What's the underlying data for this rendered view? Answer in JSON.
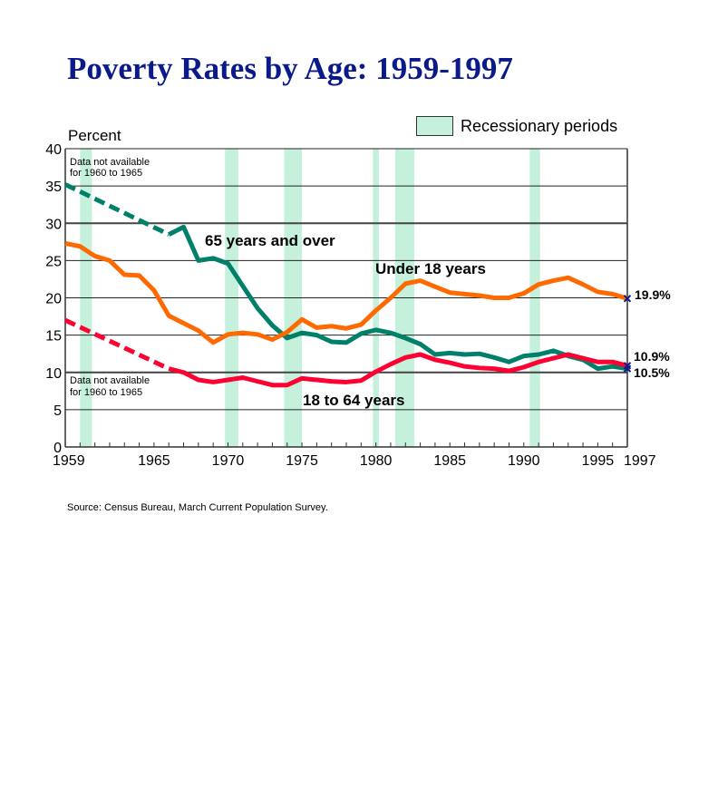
{
  "chart_data": {
    "type": "line",
    "title": "Poverty Rates by Age:  1959-1997",
    "ylabel": "Percent",
    "xlabel": "",
    "xlim": [
      1959,
      1997
    ],
    "ylim": [
      0,
      40
    ],
    "y_ticks": [
      0,
      5,
      10,
      15,
      20,
      25,
      30,
      35,
      40
    ],
    "x_ticks": [
      1959,
      1965,
      1970,
      1975,
      1980,
      1985,
      1990,
      1995,
      1997
    ],
    "grid": true,
    "legend": {
      "label": "Recessionary periods",
      "position": "top-right"
    },
    "recessions": [
      [
        1960.0,
        1960.8
      ],
      [
        1969.8,
        1970.7
      ],
      [
        1973.8,
        1975.0
      ],
      [
        1979.8,
        1980.2
      ],
      [
        1981.3,
        1982.6
      ],
      [
        1990.4,
        1991.1
      ]
    ],
    "recession_color": "#c4f0dc",
    "notes": [
      "Data not available for 1960 to 1965",
      "Data not available for 1960 to 1965"
    ],
    "series": [
      {
        "name": "65 years and over",
        "color": "#00806a",
        "dashed_until": 1966,
        "end_label": "10.5%",
        "x": [
          1959,
          1966,
          1967,
          1968,
          1969,
          1970,
          1971,
          1972,
          1973,
          1974,
          1975,
          1976,
          1977,
          1978,
          1979,
          1980,
          1981,
          1982,
          1983,
          1984,
          1985,
          1986,
          1987,
          1988,
          1989,
          1990,
          1991,
          1992,
          1993,
          1994,
          1995,
          1996,
          1997
        ],
        "y": [
          35.2,
          28.5,
          29.5,
          25.0,
          25.3,
          24.6,
          21.6,
          18.6,
          16.3,
          14.6,
          15.3,
          15.0,
          14.1,
          14.0,
          15.2,
          15.7,
          15.3,
          14.6,
          13.8,
          12.4,
          12.6,
          12.4,
          12.5,
          12.0,
          11.4,
          12.2,
          12.4,
          12.9,
          12.2,
          11.7,
          10.5,
          10.8,
          10.5
        ]
      },
      {
        "name": "Under 18 years",
        "color": "#ff6a00",
        "dashed_until": null,
        "end_label": "19.9%",
        "x": [
          1959,
          1960,
          1961,
          1962,
          1963,
          1964,
          1965,
          1966,
          1967,
          1968,
          1969,
          1970,
          1971,
          1972,
          1973,
          1974,
          1975,
          1976,
          1977,
          1978,
          1979,
          1980,
          1981,
          1982,
          1983,
          1984,
          1985,
          1986,
          1987,
          1988,
          1989,
          1990,
          1991,
          1992,
          1993,
          1994,
          1995,
          1996,
          1997
        ],
        "y": [
          27.3,
          26.9,
          25.6,
          25.0,
          23.1,
          23.0,
          21.0,
          17.6,
          16.6,
          15.6,
          14.0,
          15.1,
          15.3,
          15.1,
          14.4,
          15.4,
          17.1,
          16.0,
          16.2,
          15.9,
          16.4,
          18.3,
          20.0,
          21.9,
          22.3,
          21.5,
          20.7,
          20.5,
          20.3,
          20.0,
          20.0,
          20.6,
          21.8,
          22.3,
          22.7,
          21.8,
          20.8,
          20.5,
          19.9
        ]
      },
      {
        "name": "18 to 64 years",
        "color": "#ff0033",
        "dashed_until": 1966,
        "end_label": "10.9%",
        "x": [
          1959,
          1966,
          1967,
          1968,
          1969,
          1970,
          1971,
          1972,
          1973,
          1974,
          1975,
          1976,
          1977,
          1978,
          1979,
          1980,
          1981,
          1982,
          1983,
          1984,
          1985,
          1986,
          1987,
          1988,
          1989,
          1990,
          1991,
          1992,
          1993,
          1994,
          1995,
          1996,
          1997
        ],
        "y": [
          17.0,
          10.5,
          10.0,
          9.0,
          8.7,
          9.0,
          9.3,
          8.8,
          8.3,
          8.3,
          9.2,
          9.0,
          8.8,
          8.7,
          8.9,
          10.1,
          11.1,
          12.0,
          12.4,
          11.7,
          11.3,
          10.8,
          10.6,
          10.5,
          10.2,
          10.7,
          11.4,
          11.9,
          12.4,
          11.9,
          11.4,
          11.4,
          10.9
        ]
      }
    ],
    "end_marker_color": "#0b1a8a",
    "source": "Source:  Census Bureau, March Current Population Survey."
  }
}
